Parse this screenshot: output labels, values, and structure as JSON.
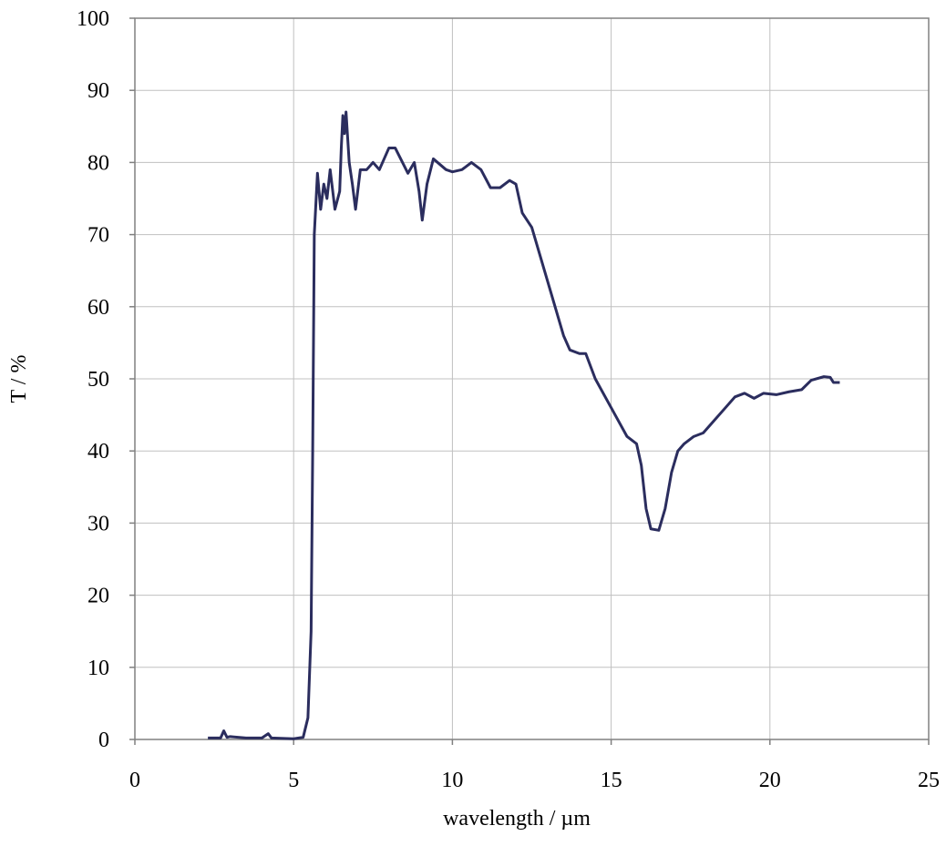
{
  "chart_data": {
    "type": "line",
    "xlabel": "wavelength / µm",
    "ylabel": "T / %",
    "xlim": [
      0,
      25
    ],
    "xticks": [
      0,
      5,
      10,
      15,
      20,
      25
    ],
    "ylim": [
      0,
      100
    ],
    "yticks": [
      0,
      10,
      20,
      30,
      40,
      50,
      60,
      70,
      80,
      90,
      100
    ],
    "grid": true,
    "series": [
      {
        "color": "#2b2d5e",
        "x": [
          2.3,
          2.7,
          2.8,
          2.9,
          3.0,
          3.5,
          4.0,
          4.2,
          4.3,
          5.0,
          5.3,
          5.45,
          5.55,
          5.6,
          5.65,
          5.75,
          5.85,
          5.95,
          6.05,
          6.15,
          6.3,
          6.45,
          6.5,
          6.55,
          6.6,
          6.65,
          6.75,
          6.85,
          6.95,
          7.1,
          7.3,
          7.5,
          7.7,
          8.0,
          8.2,
          8.6,
          8.8,
          8.95,
          9.05,
          9.2,
          9.4,
          9.8,
          10.0,
          10.3,
          10.6,
          10.9,
          11.2,
          11.5,
          11.8,
          12.0,
          12.2,
          12.5,
          12.9,
          13.5,
          13.7,
          14.0,
          14.2,
          14.5,
          15.0,
          15.5,
          15.8,
          15.95,
          16.1,
          16.25,
          16.5,
          16.7,
          16.9,
          17.1,
          17.3,
          17.6,
          17.9,
          18.2,
          18.6,
          18.9,
          19.2,
          19.5,
          19.8,
          20.2,
          20.6,
          21.0,
          21.3,
          21.7,
          21.9,
          22.0,
          22.2
        ],
        "values": [
          0.2,
          0.2,
          1.2,
          0.3,
          0.4,
          0.2,
          0.2,
          0.8,
          0.2,
          0.1,
          0.3,
          3,
          15,
          40,
          70,
          78.5,
          73.5,
          77,
          75,
          79,
          73.5,
          76,
          82,
          86.5,
          84,
          87,
          80,
          77,
          73.5,
          79,
          79,
          80,
          79,
          82,
          82,
          78.5,
          80,
          76,
          72,
          77,
          80.5,
          79,
          78.7,
          79,
          80,
          79,
          76.5,
          76.5,
          77.5,
          77,
          73,
          71,
          65,
          56,
          54,
          53.5,
          53.5,
          50,
          46,
          42,
          41,
          38,
          32,
          29.2,
          29,
          32,
          37,
          40,
          41,
          42,
          42.5,
          44,
          46,
          47.5,
          48,
          47.3,
          48,
          47.8,
          48.2,
          48.5,
          49.8,
          50.3,
          50.2,
          49.5,
          49.5
        ]
      }
    ]
  }
}
